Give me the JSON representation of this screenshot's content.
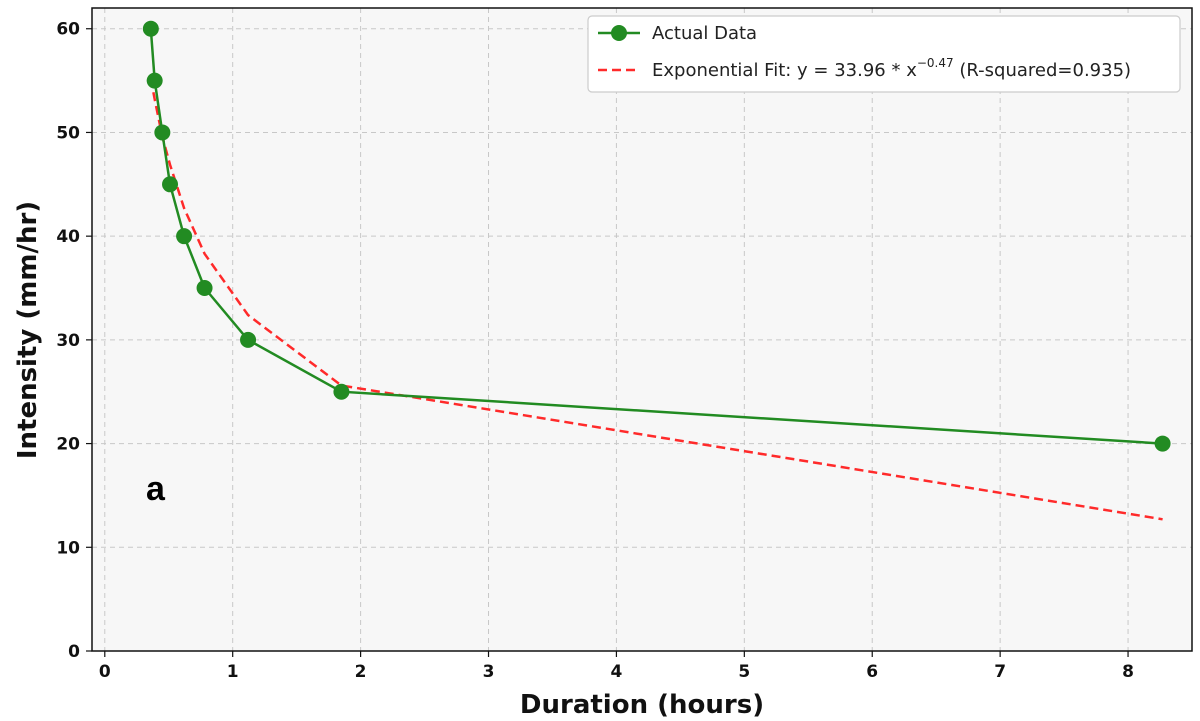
{
  "chart_data": {
    "type": "line",
    "xlabel": "Duration (hours)",
    "ylabel": "Intensity (mm/hr)",
    "xlim": [
      -0.1,
      8.5
    ],
    "ylim": [
      0,
      62
    ],
    "x_ticks": [
      0,
      1,
      2,
      3,
      4,
      5,
      6,
      7,
      8
    ],
    "y_ticks": [
      0,
      10,
      20,
      30,
      40,
      50,
      60
    ],
    "grid": true,
    "legend_position": "top-right",
    "panel_label": "a",
    "series": [
      {
        "name": "Actual Data",
        "style": "solid-line-with-markers",
        "color": "#228B22",
        "x": [
          0.36,
          0.39,
          0.45,
          0.51,
          0.62,
          0.78,
          1.12,
          1.85,
          8.27
        ],
        "y": [
          60,
          55,
          50,
          45,
          40,
          35,
          30,
          25,
          20
        ]
      },
      {
        "name": "Exponential Fit",
        "style": "dashed",
        "color": "#ff2a2a",
        "equation": "y = 33.96 * x^(−0.47)",
        "equation_prefix": "Exponential Fit: y = 33.96 * x",
        "equation_exponent": "−0.47",
        "r_squared_label": " (R-squared=0.935)",
        "x": [
          0.36,
          0.39,
          0.45,
          0.51,
          0.62,
          0.78,
          1.12,
          1.85,
          8.27
        ],
        "y": [
          55.2,
          53.2,
          49.6,
          46.9,
          42.7,
          38.3,
          32.4,
          25.6,
          12.7
        ]
      }
    ]
  }
}
